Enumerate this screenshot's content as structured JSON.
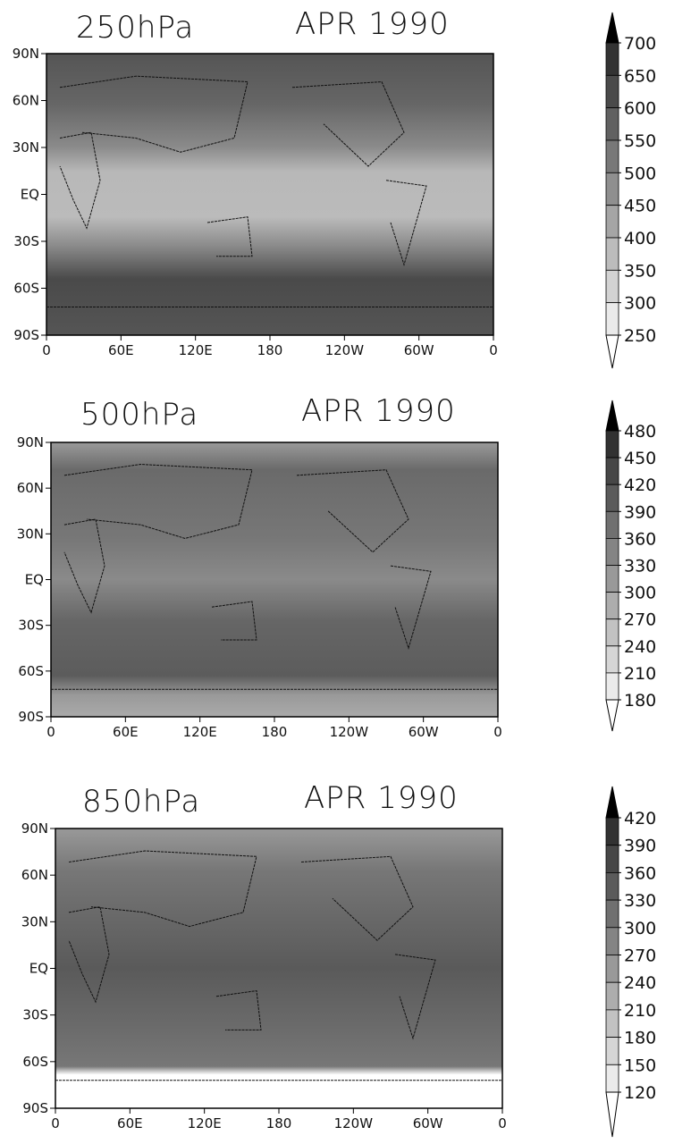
{
  "panels": [
    {
      "level": "250hPa",
      "date": "APR 1990",
      "lat_ticks": [
        "90N",
        "60N",
        "30N",
        "EQ",
        "30S",
        "60S",
        "90S"
      ],
      "lon_ticks": [
        "0",
        "60E",
        "120E",
        "180",
        "120W",
        "60W",
        "0"
      ],
      "colorbar": [
        700,
        650,
        600,
        550,
        500,
        450,
        400,
        350,
        300,
        250
      ]
    },
    {
      "level": "500hPa",
      "date": "APR 1990",
      "lat_ticks": [
        "90N",
        "60N",
        "30N",
        "EQ",
        "30S",
        "60S",
        "90S"
      ],
      "lon_ticks": [
        "0",
        "60E",
        "120E",
        "180",
        "120W",
        "60W",
        "0"
      ],
      "colorbar": [
        480,
        450,
        420,
        390,
        360,
        330,
        300,
        270,
        240,
        210,
        180
      ]
    },
    {
      "level": "850hPa",
      "date": "APR 1990",
      "lat_ticks": [
        "90N",
        "60N",
        "30N",
        "EQ",
        "30S",
        "60S",
        "90S"
      ],
      "lon_ticks": [
        "0",
        "60E",
        "120E",
        "180",
        "120W",
        "60W",
        "0"
      ],
      "colorbar": [
        420,
        390,
        360,
        330,
        300,
        270,
        240,
        210,
        180,
        150,
        120
      ]
    }
  ]
}
